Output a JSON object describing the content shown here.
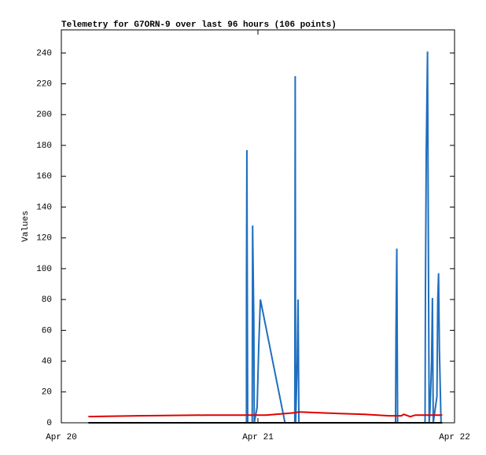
{
  "chart_data": {
    "type": "line",
    "title": "Telemetry for G7ORN-9 over last 96 hours (106 points)",
    "y_label": "Values",
    "xlim": [
      0,
      48
    ],
    "xticks": [
      {
        "value": 0,
        "label": "Apr 20"
      },
      {
        "value": 24,
        "label": "Apr 21"
      },
      {
        "value": 48,
        "label": "Apr 22"
      }
    ],
    "ylim": [
      0,
      255
    ],
    "yticks": [
      0,
      20,
      40,
      60,
      80,
      100,
      120,
      140,
      160,
      180,
      200,
      220,
      240
    ],
    "series": [
      {
        "color": "#1f6fbf",
        "x": [
          22.6,
          22.6,
          22.65,
          22.7,
          22.75,
          23.3,
          23.35,
          23.5,
          23.55,
          23.9,
          24.0,
          24.1,
          24.3,
          27.3,
          28.5,
          28.55,
          28.6,
          28.8,
          28.9,
          29.0,
          40.8,
          40.85,
          40.95,
          41.05,
          44.4,
          44.45,
          44.55,
          44.7,
          44.8,
          44.9,
          45.0,
          45.2,
          45.3,
          45.4,
          45.85,
          45.95,
          46.05,
          46.15,
          46.35
        ],
        "values": [
          0,
          88,
          177,
          88,
          0,
          0,
          128,
          65,
          0,
          10,
          30,
          50,
          80,
          0,
          0,
          225,
          0,
          40,
          80,
          0,
          0,
          56,
          113,
          0,
          0,
          89,
          177,
          241,
          121,
          0,
          8,
          40,
          81,
          0,
          17,
          80,
          97,
          48,
          0
        ]
      },
      {
        "color": "#e00000",
        "x": [
          3.3,
          9.3,
          18,
          25,
          28.5,
          29,
          31.5,
          34,
          37,
          40,
          41.5,
          41.8,
          42.6,
          43.2,
          46.5
        ],
        "values": [
          4,
          4.5,
          5,
          5,
          6.5,
          7,
          6.5,
          6,
          5.5,
          4.5,
          4.5,
          5.5,
          4,
          5,
          5
        ]
      },
      {
        "color": "#000000",
        "x": [
          3.3,
          46.5
        ],
        "values": [
          0,
          0
        ]
      }
    ]
  }
}
